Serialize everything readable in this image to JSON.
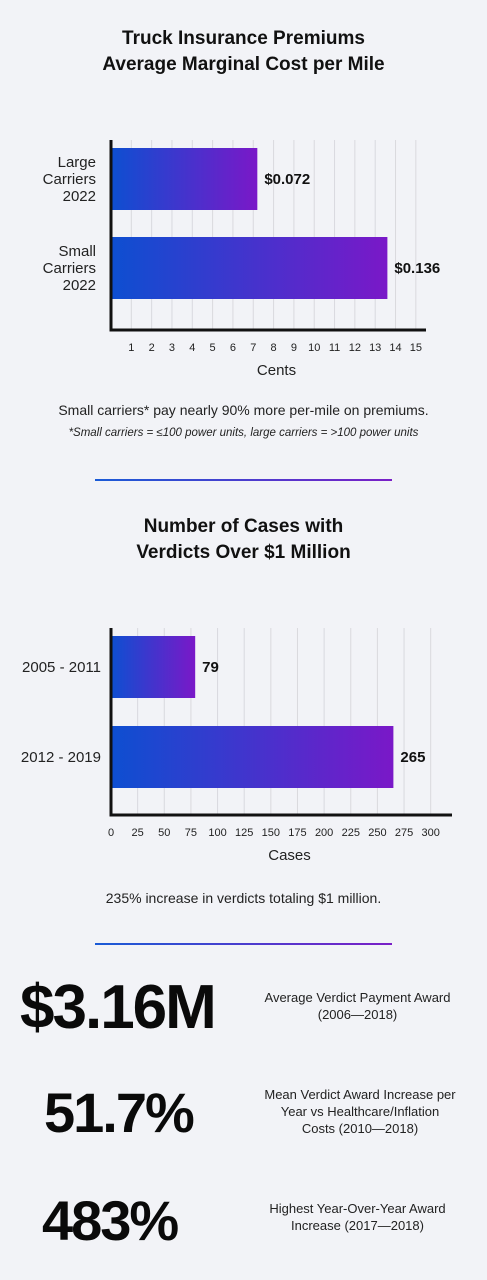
{
  "chart_data": [
    {
      "type": "bar",
      "orientation": "horizontal",
      "title": [
        "Truck Insurance Premiums",
        "Average Marginal Cost per Mile"
      ],
      "categories": [
        [
          "Large",
          "Carriers",
          "2022"
        ],
        [
          "Small",
          "Carriers",
          "2022"
        ]
      ],
      "values": [
        7.2,
        13.6
      ],
      "value_labels": [
        "$0.072",
        "$0.136"
      ],
      "xlabel": "Cents",
      "xlim": [
        0,
        15.5
      ],
      "ticks": [
        1,
        2,
        3,
        4,
        5,
        6,
        7,
        8,
        9,
        10,
        11,
        12,
        13,
        14,
        15
      ],
      "grid": true,
      "bar_gradient": [
        "#0d4fd1",
        "#7a18c8"
      ]
    },
    {
      "type": "bar",
      "orientation": "horizontal",
      "title": [
        "Number of Cases with",
        "Verdicts Over $1 Million"
      ],
      "categories": [
        [
          "2005 - 2011"
        ],
        [
          "2012 - 2019"
        ]
      ],
      "values": [
        79,
        265
      ],
      "value_labels": [
        "79",
        "265"
      ],
      "xlabel": "Cases",
      "xlim": [
        0,
        320
      ],
      "ticks": [
        0,
        25,
        50,
        75,
        100,
        125,
        150,
        175,
        200,
        225,
        250,
        275,
        300
      ],
      "grid": true,
      "bar_gradient": [
        "#0d4fd1",
        "#7a18c8"
      ]
    }
  ],
  "notes": {
    "premium_note": "Small carriers* pay nearly 90% more per-mile on premiums.",
    "premium_footnote": "*Small carriers = ≤100 power units, large carriers = >100 power units",
    "verdict_note": "235% increase in verdicts totaling $1 million."
  },
  "stats": [
    {
      "value": "$3.16M",
      "desc": [
        "Average Verdict Payment Award",
        "(2006—2018)"
      ]
    },
    {
      "value": "51.7%",
      "desc": [
        "Mean Verdict Award Increase per",
        "Year vs Healthcare/Inflation",
        "Costs (2010—2018)"
      ]
    },
    {
      "value": "483%",
      "desc": [
        "Highest Year-Over-Year Award",
        "Increase (2017—2018)"
      ]
    }
  ]
}
